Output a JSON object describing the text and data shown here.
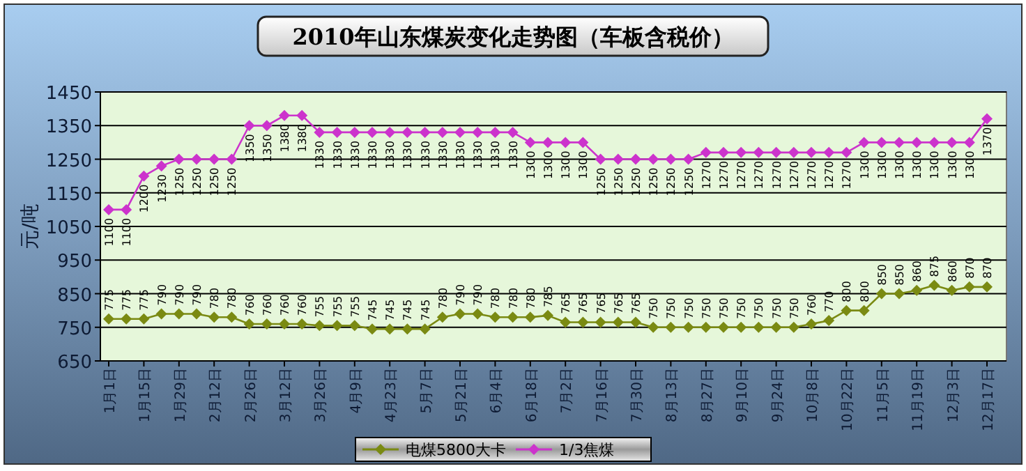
{
  "chart_data": {
    "type": "line",
    "title": "2010年山东煤炭变化走势图（车板含税价）",
    "ylabel": "元/吨",
    "categories": [
      "1月1日",
      null,
      "1月15日",
      null,
      "1月29日",
      null,
      "2月12日",
      null,
      "2月26日",
      null,
      "3月12日",
      null,
      "3月26日",
      null,
      "4月9日",
      null,
      "4月23日",
      null,
      "5月7日",
      null,
      "5月21日",
      null,
      "6月4日",
      null,
      "6月18日",
      null,
      "7月2日",
      null,
      "7月16日",
      null,
      "7月30日",
      null,
      "8月13日",
      null,
      "8月27日",
      null,
      "9月10日",
      null,
      "9月24日",
      null,
      "10月8日",
      null,
      "10月22日",
      null,
      "11月5日",
      null,
      "11月19日",
      null,
      "12月3日",
      null,
      "12月17日"
    ],
    "series": [
      {
        "name": "电煤5800大卡",
        "color": "#7a8a12",
        "values": [
          775,
          775,
          775,
          790,
          790,
          790,
          780,
          780,
          760,
          760,
          760,
          760,
          755,
          755,
          755,
          745,
          745,
          745,
          745,
          780,
          790,
          790,
          780,
          780,
          780,
          785,
          765,
          765,
          765,
          765,
          765,
          750,
          750,
          750,
          750,
          750,
          750,
          750,
          750,
          750,
          760,
          770,
          800,
          800,
          850,
          850,
          860,
          875,
          860,
          870,
          870
        ]
      },
      {
        "name": "1/3焦煤",
        "color": "#cc33cc",
        "values": [
          1100,
          1100,
          1200,
          1230,
          1250,
          1250,
          1250,
          1250,
          1350,
          1350,
          1380,
          1380,
          1330,
          1330,
          1330,
          1330,
          1330,
          1330,
          1330,
          1330,
          1330,
          1330,
          1330,
          1330,
          1300,
          1300,
          1300,
          1300,
          1250,
          1250,
          1250,
          1250,
          1250,
          1250,
          1270,
          1270,
          1270,
          1270,
          1270,
          1270,
          1270,
          1270,
          1270,
          1300,
          1300,
          1300,
          1300,
          1300,
          1300,
          1300,
          1370
        ]
      }
    ],
    "ylim": [
      650,
      1450
    ],
    "yticks": [
      650,
      750,
      850,
      950,
      1050,
      1150,
      1250,
      1350,
      1450
    ],
    "grid": "y",
    "legend": "bottom",
    "marker": "diamond",
    "data_labels": true
  }
}
